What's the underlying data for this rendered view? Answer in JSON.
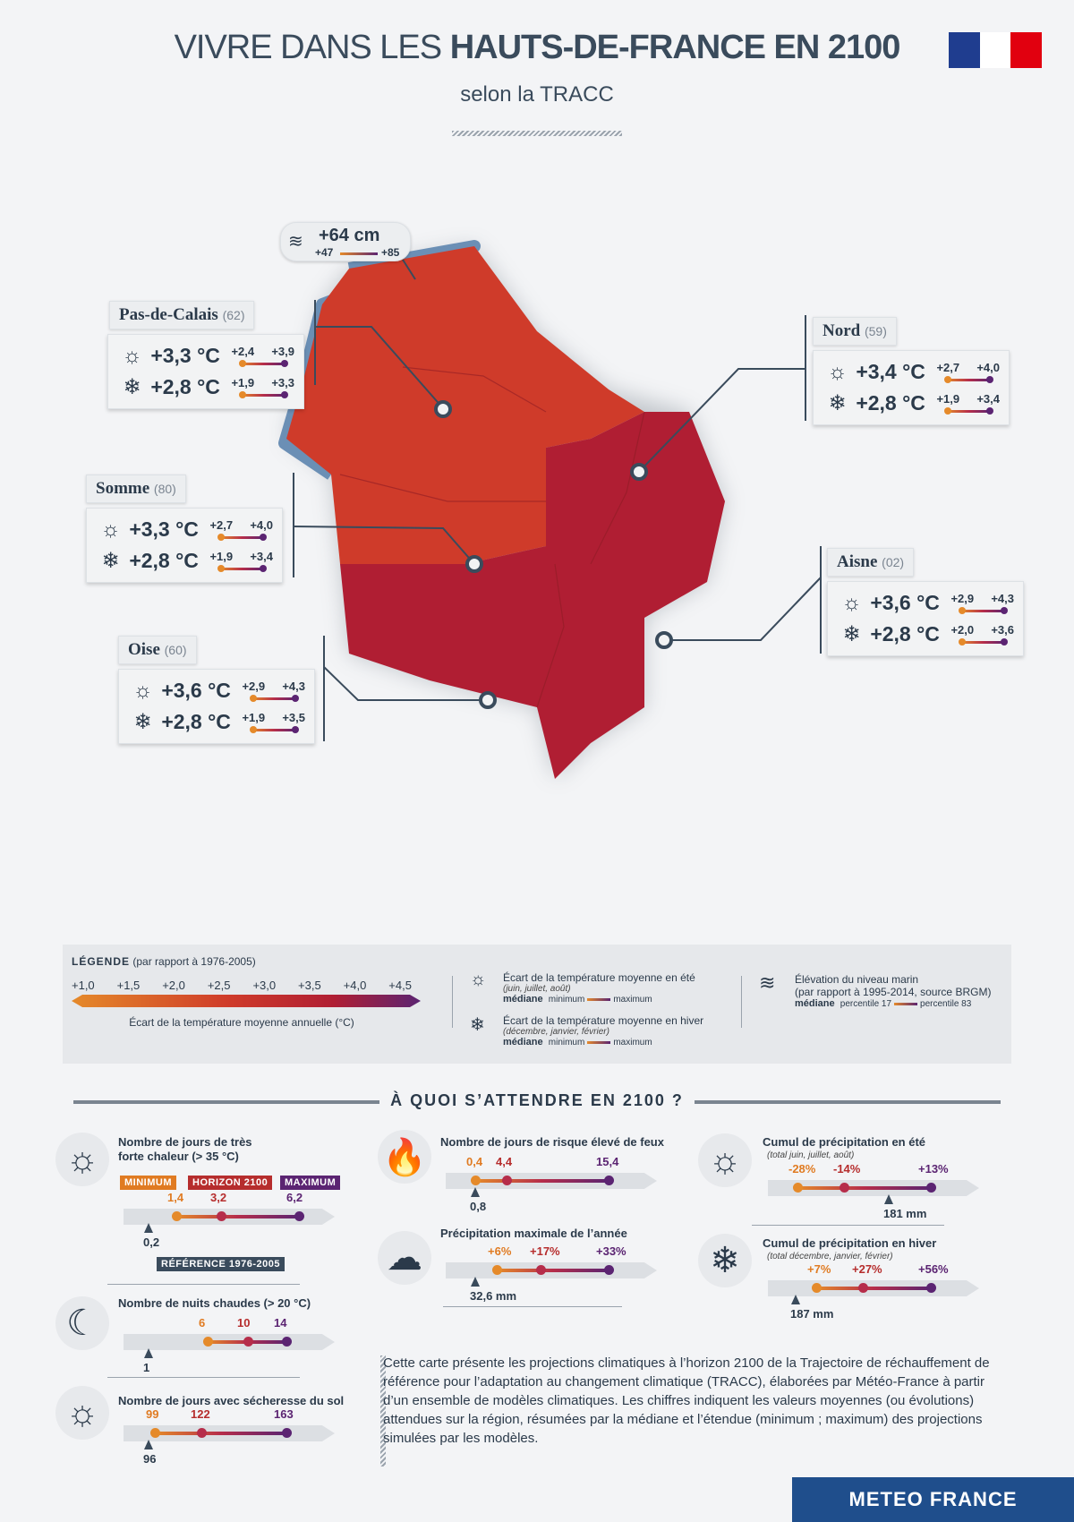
{
  "header": {
    "title_light": "VIVRE DANS LES ",
    "title_bold": "HAUTS-DE-FRANCE EN 2100",
    "subtitle": "selon la TRACC"
  },
  "colors": {
    "flag_blue": "#1f3d8f",
    "flag_white": "#ffffff",
    "flag_red": "#e1000f",
    "map_orange": "#cf3b2a",
    "map_red": "#b01e33",
    "coast": "#6b8fb5",
    "min": "#e58a2a",
    "median": "#b62d4a",
    "max": "#5b2472",
    "brand": "#1f4e8c"
  },
  "sea": {
    "main": "+64 cm",
    "lo": "+47",
    "hi": "+85",
    "icon": "wave-icon"
  },
  "departments": [
    {
      "name": "Pas-de-Calais",
      "code": "(62)",
      "summer": "+3,3 °C",
      "s_lo": "+2,4",
      "s_hi": "+3,9",
      "winter": "+2,8 °C",
      "w_lo": "+1,9",
      "w_hi": "+3,3"
    },
    {
      "name": "Nord",
      "code": "(59)",
      "summer": "+3,4 °C",
      "s_lo": "+2,7",
      "s_hi": "+4,0",
      "winter": "+2,8 °C",
      "w_lo": "+1,9",
      "w_hi": "+3,4"
    },
    {
      "name": "Somme",
      "code": "(80)",
      "summer": "+3,3 °C",
      "s_lo": "+2,7",
      "s_hi": "+4,0",
      "winter": "+2,8 °C",
      "w_lo": "+1,9",
      "w_hi": "+3,4"
    },
    {
      "name": "Aisne",
      "code": "(02)",
      "summer": "+3,6 °C",
      "s_lo": "+2,9",
      "s_hi": "+4,3",
      "winter": "+2,8 °C",
      "w_lo": "+2,0",
      "w_hi": "+3,6"
    },
    {
      "name": "Oise",
      "code": "(60)",
      "summer": "+3,6 °C",
      "s_lo": "+2,9",
      "s_hi": "+4,3",
      "winter": "+2,8 °C",
      "w_lo": "+1,9",
      "w_hi": "+3,5"
    }
  ],
  "legend": {
    "title": "LÉGENDE",
    "title_sub": "(par rapport à 1976-2005)",
    "ticks": [
      "+1,0",
      "+1,5",
      "+2,0",
      "+2,5",
      "+3,0",
      "+3,5",
      "+4,0",
      "+4,5"
    ],
    "scale_caption": "Écart de la température moyenne annuelle (°C)",
    "summer_title": "Écart de la température moyenne en été",
    "summer_sub": "(juin, juillet, août)",
    "winter_title": "Écart de la température moyenne en hiver",
    "winter_sub": "(décembre, janvier, février)",
    "mediane": "médiane",
    "minimum": "minimum",
    "maximum": "maximum",
    "sea_title": "Élévation du niveau marin",
    "sea_sub": "(par rapport à 1995-2014, source BRGM)",
    "p17": "percentile 17",
    "p83": "percentile 83"
  },
  "section_title": "À QUOI S’ATTENDRE EN 2100 ?",
  "indicators": {
    "hot_days": {
      "title1": "Nombre de jours de très",
      "title2": "forte chaleur (> 35 °C)",
      "min": "1,4",
      "med": "3,2",
      "max": "6,2",
      "ref": "0,2",
      "tag_min": "MINIMUM",
      "tag_med": "HORIZON 2100",
      "tag_max": "MAXIMUM",
      "tag_ref": "RÉFÉRENCE 1976-2005"
    },
    "hot_nights": {
      "title": "Nombre de nuits chaudes (> 20 °C)",
      "min": "6",
      "med": "10",
      "max": "14",
      "ref": "1"
    },
    "drought": {
      "title": "Nombre de jours avec sécheresse du sol",
      "min": "99",
      "med": "122",
      "max": "163",
      "ref": "96"
    },
    "fire": {
      "title": "Nombre de jours de risque élevé de feux",
      "min": "0,4",
      "med": "4,4",
      "max": "15,4",
      "ref": "0,8"
    },
    "max_precip": {
      "title": "Précipitation maximale de l’année",
      "min": "+6%",
      "med": "+17%",
      "max": "+33%",
      "ref": "32,6 mm"
    },
    "summer_precip": {
      "title": "Cumul de précipitation en été",
      "sub": "(total juin, juillet, août)",
      "min": "-28%",
      "med": "-14%",
      "max": "+13%",
      "ref": "181 mm"
    },
    "winter_precip": {
      "title": "Cumul de précipitation en hiver",
      "sub": "(total décembre, janvier, février)",
      "min": "+7%",
      "med": "+27%",
      "max": "+56%",
      "ref": "187 mm"
    }
  },
  "description": "Cette carte présente les projections climatiques à l’horizon 2100 de la Trajectoire de réchauffement de référence pour l’adaptation au changement climatique (TRACC), élaborées par Météo-France à partir d’un ensemble de modèles climatiques. Les chiffres indiquent les valeurs moyennes (ou évolutions) attendues sur la région, résumées par la médiane et l’étendue (minimum ; maximum) des projections simulées par les modèles.",
  "brand": "METEO FRANCE"
}
